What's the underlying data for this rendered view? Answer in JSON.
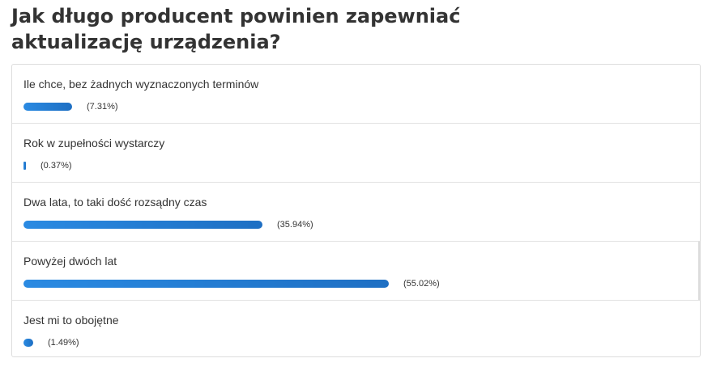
{
  "poll": {
    "title": "Jak długo producent powinien zapewniać aktualizację urządzenia?",
    "accent_color": "#1e7bd4",
    "options": [
      {
        "label": "Ile chce, bez żadnych wyznaczonych terminów",
        "percent": 7.31,
        "percent_text": "(7.31%)"
      },
      {
        "label": "Rok w zupełności wystarczy",
        "percent": 0.37,
        "percent_text": "(0.37%)"
      },
      {
        "label": "Dwa lata, to taki dość rozsądny czas",
        "percent": 35.94,
        "percent_text": "(35.94%)"
      },
      {
        "label": "Powyżej dwóch lat",
        "percent": 55.02,
        "percent_text": "(55.02%)"
      },
      {
        "label": "Jest mi to obojętne",
        "percent": 1.49,
        "percent_text": "(1.49%)"
      }
    ]
  }
}
